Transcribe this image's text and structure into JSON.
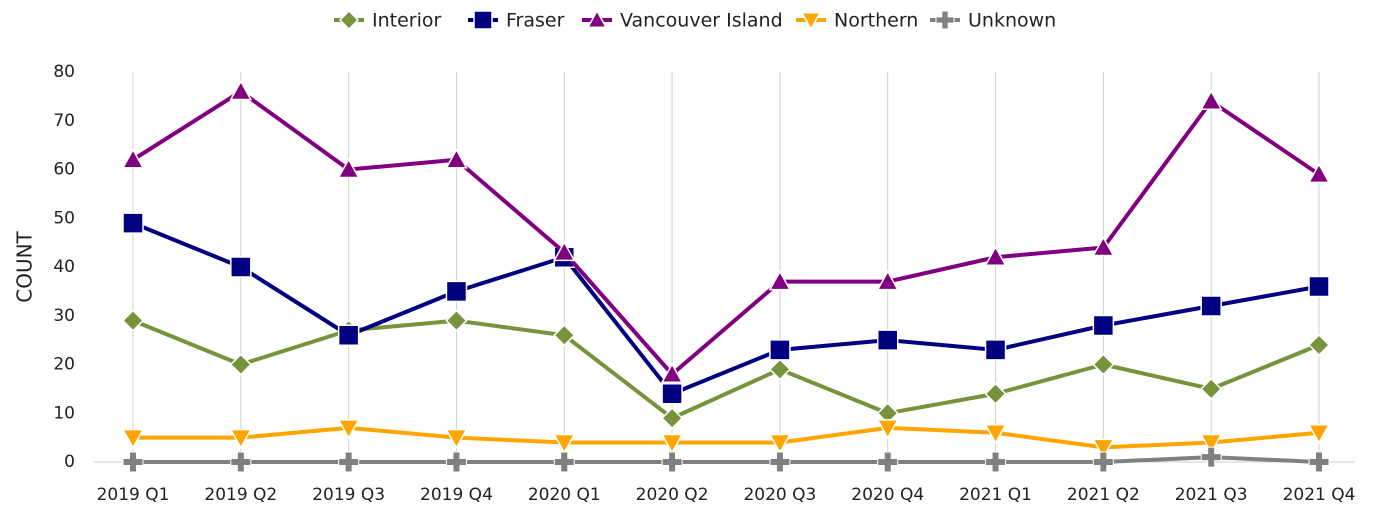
{
  "chart_data": {
    "type": "line",
    "y_label": "COUNT",
    "categories": [
      "2019 Q1",
      "2019 Q2",
      "2019 Q3",
      "2019 Q4",
      "2020 Q1",
      "2020 Q2",
      "2020 Q3",
      "2020 Q4",
      "2021 Q1",
      "2021 Q2",
      "2021 Q3",
      "2021 Q4"
    ],
    "series": [
      {
        "name": "Interior",
        "color": "#77933c",
        "marker": "diamond",
        "values": [
          29,
          20,
          27,
          29,
          26,
          9,
          19,
          10,
          14,
          20,
          15,
          24
        ]
      },
      {
        "name": "Fraser",
        "color": "#000080",
        "marker": "square",
        "values": [
          49,
          40,
          26,
          35,
          42,
          14,
          23,
          25,
          23,
          28,
          32,
          36
        ]
      },
      {
        "name": "Vancouver Island",
        "color": "#800080",
        "marker": "triangle-up",
        "values": [
          62,
          76,
          60,
          62,
          43,
          18,
          37,
          37,
          42,
          44,
          74,
          59
        ]
      },
      {
        "name": "Northern",
        "color": "#ffa500",
        "marker": "triangle-down",
        "values": [
          5,
          5,
          7,
          5,
          4,
          4,
          4,
          7,
          6,
          3,
          4,
          6
        ]
      },
      {
        "name": "Unknown",
        "color": "#808080",
        "marker": "plus",
        "values": [
          0,
          0,
          0,
          0,
          0,
          0,
          0,
          0,
          0,
          0,
          1,
          0
        ]
      }
    ],
    "ylim": [
      0,
      80
    ],
    "yticks": [
      0,
      10,
      20,
      30,
      40,
      50,
      60,
      70,
      80
    ],
    "grid": "x",
    "legend": "top"
  }
}
